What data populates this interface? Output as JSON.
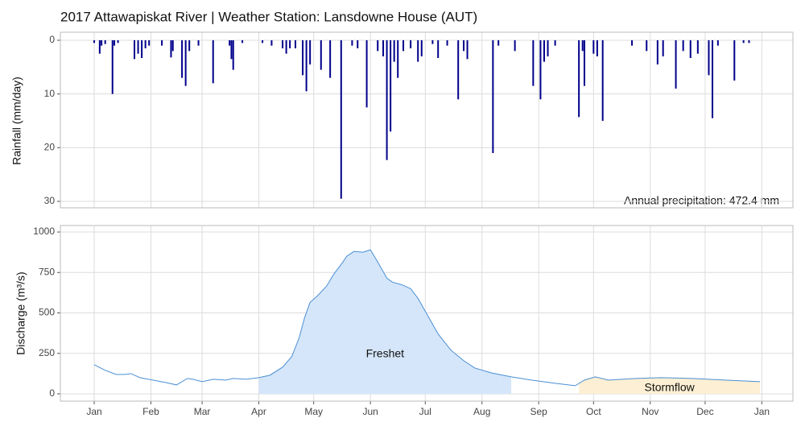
{
  "chart_data": [
    {
      "type": "bar",
      "title": "2017 Attawapiskat River | Weather Station: Lansdowne House (AUT)",
      "ylabel": "Rainfall (mm/day)",
      "annotation": "Annual precipitation: 472.4 mm",
      "color": "#00008b",
      "ylim": [
        31.2,
        -1.5
      ],
      "yticks": [
        0,
        10,
        20,
        30
      ],
      "xlim": [
        -18.5,
        382
      ],
      "grid": true,
      "x": [
        0,
        3,
        4,
        6,
        10,
        11,
        13,
        22,
        24,
        26,
        28,
        30,
        37,
        42,
        43,
        48,
        50,
        52,
        57,
        65,
        74,
        75,
        76,
        81,
        92,
        97,
        103,
        105,
        107,
        110,
        114,
        116,
        118,
        124,
        129,
        135,
        141,
        144,
        149,
        155,
        158,
        160,
        162,
        164,
        166,
        169,
        173,
        177,
        179,
        185,
        188,
        193,
        199,
        202,
        204,
        218,
        221,
        230,
        240,
        244,
        246,
        248,
        252,
        265,
        267,
        268,
        273,
        275,
        278,
        294,
        302,
        308,
        311,
        318,
        322,
        326,
        330,
        336,
        338,
        341,
        350,
        355,
        358
      ],
      "values": [
        0.5,
        2.5,
        1,
        0.7,
        10,
        1,
        0.5,
        3.5,
        2.5,
        3.3,
        1.5,
        1,
        1,
        3.2,
        2,
        7,
        8.5,
        2,
        1,
        8,
        1,
        3.5,
        5.5,
        0.5,
        0.5,
        1,
        1.5,
        2.5,
        1.5,
        1.5,
        6.5,
        9.5,
        4.5,
        5.5,
        7,
        29.5,
        1,
        1.5,
        12.5,
        2,
        3,
        22.3,
        17,
        4,
        7,
        2,
        1.5,
        4,
        3,
        0.7,
        3.3,
        1,
        11,
        2,
        3.5,
        21,
        1,
        2,
        8.5,
        11,
        4,
        3,
        1,
        14.3,
        2,
        8.5,
        2.5,
        3,
        15,
        1,
        2,
        4.5,
        3,
        9,
        2,
        3.3,
        2.5,
        6.5,
        14.5,
        1,
        7.5,
        0.5,
        0.5
      ]
    },
    {
      "type": "line",
      "ylabel": "Discharge (m³/s)",
      "color": "#4a8fd4",
      "ylim": [
        -45,
        1040
      ],
      "yticks": [
        0,
        250,
        500,
        750,
        1000
      ],
      "xlim": [
        -18.5,
        382
      ],
      "grid": true,
      "xticks": [
        {
          "value": 0,
          "label": "Jan"
        },
        {
          "value": 31,
          "label": "Feb"
        },
        {
          "value": 59,
          "label": "Mar"
        },
        {
          "value": 90,
          "label": "Apr"
        },
        {
          "value": 120,
          "label": "May"
        },
        {
          "value": 151,
          "label": "Jun"
        },
        {
          "value": 181,
          "label": "Jul"
        },
        {
          "value": 212,
          "label": "Aug"
        },
        {
          "value": 243,
          "label": "Sep"
        },
        {
          "value": 273,
          "label": "Oct"
        },
        {
          "value": 304,
          "label": "Nov"
        },
        {
          "value": 334,
          "label": "Dec"
        },
        {
          "value": 365,
          "label": "Jan"
        }
      ],
      "x": [
        0,
        6,
        12,
        17,
        20,
        25,
        32,
        39,
        45,
        51,
        54,
        59,
        65,
        72,
        76,
        83,
        90,
        96,
        103,
        108,
        112,
        115,
        118,
        122,
        127,
        131,
        136,
        138,
        142,
        147,
        151,
        155,
        160,
        163,
        168,
        173,
        177,
        182,
        188,
        195,
        202,
        208,
        217,
        228,
        239,
        252,
        263,
        268,
        274,
        281,
        296,
        310,
        327,
        345,
        364
      ],
      "values": [
        180,
        145,
        120,
        120,
        125,
        100,
        85,
        70,
        55,
        95,
        90,
        75,
        90,
        85,
        95,
        90,
        100,
        115,
        165,
        230,
        345,
        470,
        565,
        605,
        665,
        740,
        815,
        850,
        880,
        875,
        890,
        815,
        715,
        690,
        675,
        650,
        590,
        490,
        370,
        270,
        205,
        160,
        130,
        105,
        85,
        65,
        50,
        85,
        105,
        85,
        95,
        100,
        95,
        85,
        75
      ],
      "regions": [
        {
          "label": "Freshet",
          "start": 90,
          "end": 228,
          "color": "#d5e6fa"
        },
        {
          "label": "Stormflow",
          "start": 265,
          "end": 364,
          "color": "#fcefd3"
        }
      ]
    }
  ]
}
